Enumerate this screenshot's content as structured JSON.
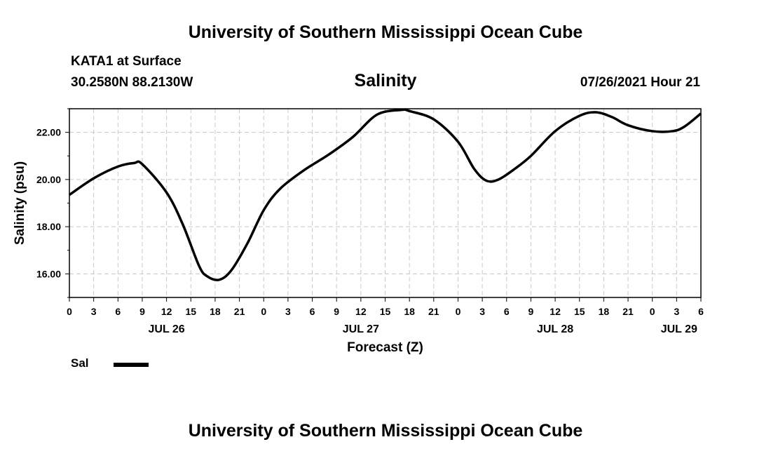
{
  "header": {
    "title_top": "University of Southern Mississippi Ocean Cube",
    "station": "KATA1 at Surface",
    "coords": "30.2580N  88.2130W",
    "variable": "Salinity",
    "timestamp": "07/26/2021 Hour 21"
  },
  "footer": {
    "title_bottom": "University of Southern Mississippi Ocean Cube"
  },
  "legend": {
    "label": "Sal",
    "line_color": "#000000"
  },
  "chart_data": {
    "type": "line",
    "title": "Salinity",
    "xlabel": "Forecast (Z)",
    "ylabel": "Salinity (psu)",
    "x_unit": "hours from JUL 26 00Z",
    "xlim": [
      0,
      78
    ],
    "ylim": [
      15,
      23
    ],
    "grid": true,
    "y_ticks": [
      16,
      18,
      20,
      22
    ],
    "y_tick_labels": [
      "16.00",
      "18.00",
      "20.00",
      "22.00"
    ],
    "x_ticks": [
      0,
      3,
      6,
      9,
      12,
      15,
      18,
      21,
      24,
      27,
      30,
      33,
      36,
      39,
      42,
      45,
      48,
      51,
      54,
      57,
      60,
      63,
      66,
      69,
      72,
      75,
      78
    ],
    "x_tick_labels": [
      "0",
      "3",
      "6",
      "9",
      "12",
      "15",
      "18",
      "21",
      "0",
      "3",
      "6",
      "9",
      "12",
      "15",
      "18",
      "21",
      "0",
      "3",
      "6",
      "9",
      "12",
      "15",
      "18",
      "21",
      "0",
      "3",
      "6"
    ],
    "day_labels": [
      {
        "x": 12,
        "label": "JUL 26"
      },
      {
        "x": 36,
        "label": "JUL 27"
      },
      {
        "x": 60,
        "label": "JUL 28"
      },
      {
        "x": 75.3,
        "label": "JUL 29"
      }
    ],
    "legend_position": "bottom-left",
    "series": [
      {
        "name": "Sal",
        "color": "#000000",
        "x": [
          0,
          3,
          6,
          8,
          9,
          12,
          14,
          16,
          17,
          18.5,
          20,
          22,
          24,
          26,
          29,
          32,
          35,
          38,
          41,
          42,
          45,
          48,
          50,
          51.5,
          53,
          55,
          57,
          60,
          63,
          65,
          67,
          69,
          72,
          74.5,
          76,
          78
        ],
        "values": [
          19.35,
          20.05,
          20.55,
          20.7,
          20.65,
          19.45,
          18.1,
          16.35,
          15.9,
          15.75,
          16.15,
          17.3,
          18.7,
          19.6,
          20.4,
          21.05,
          21.8,
          22.75,
          22.95,
          22.9,
          22.55,
          21.6,
          20.45,
          19.95,
          20.0,
          20.45,
          21.0,
          22.05,
          22.7,
          22.85,
          22.65,
          22.3,
          22.05,
          22.05,
          22.25,
          22.8
        ]
      }
    ]
  }
}
